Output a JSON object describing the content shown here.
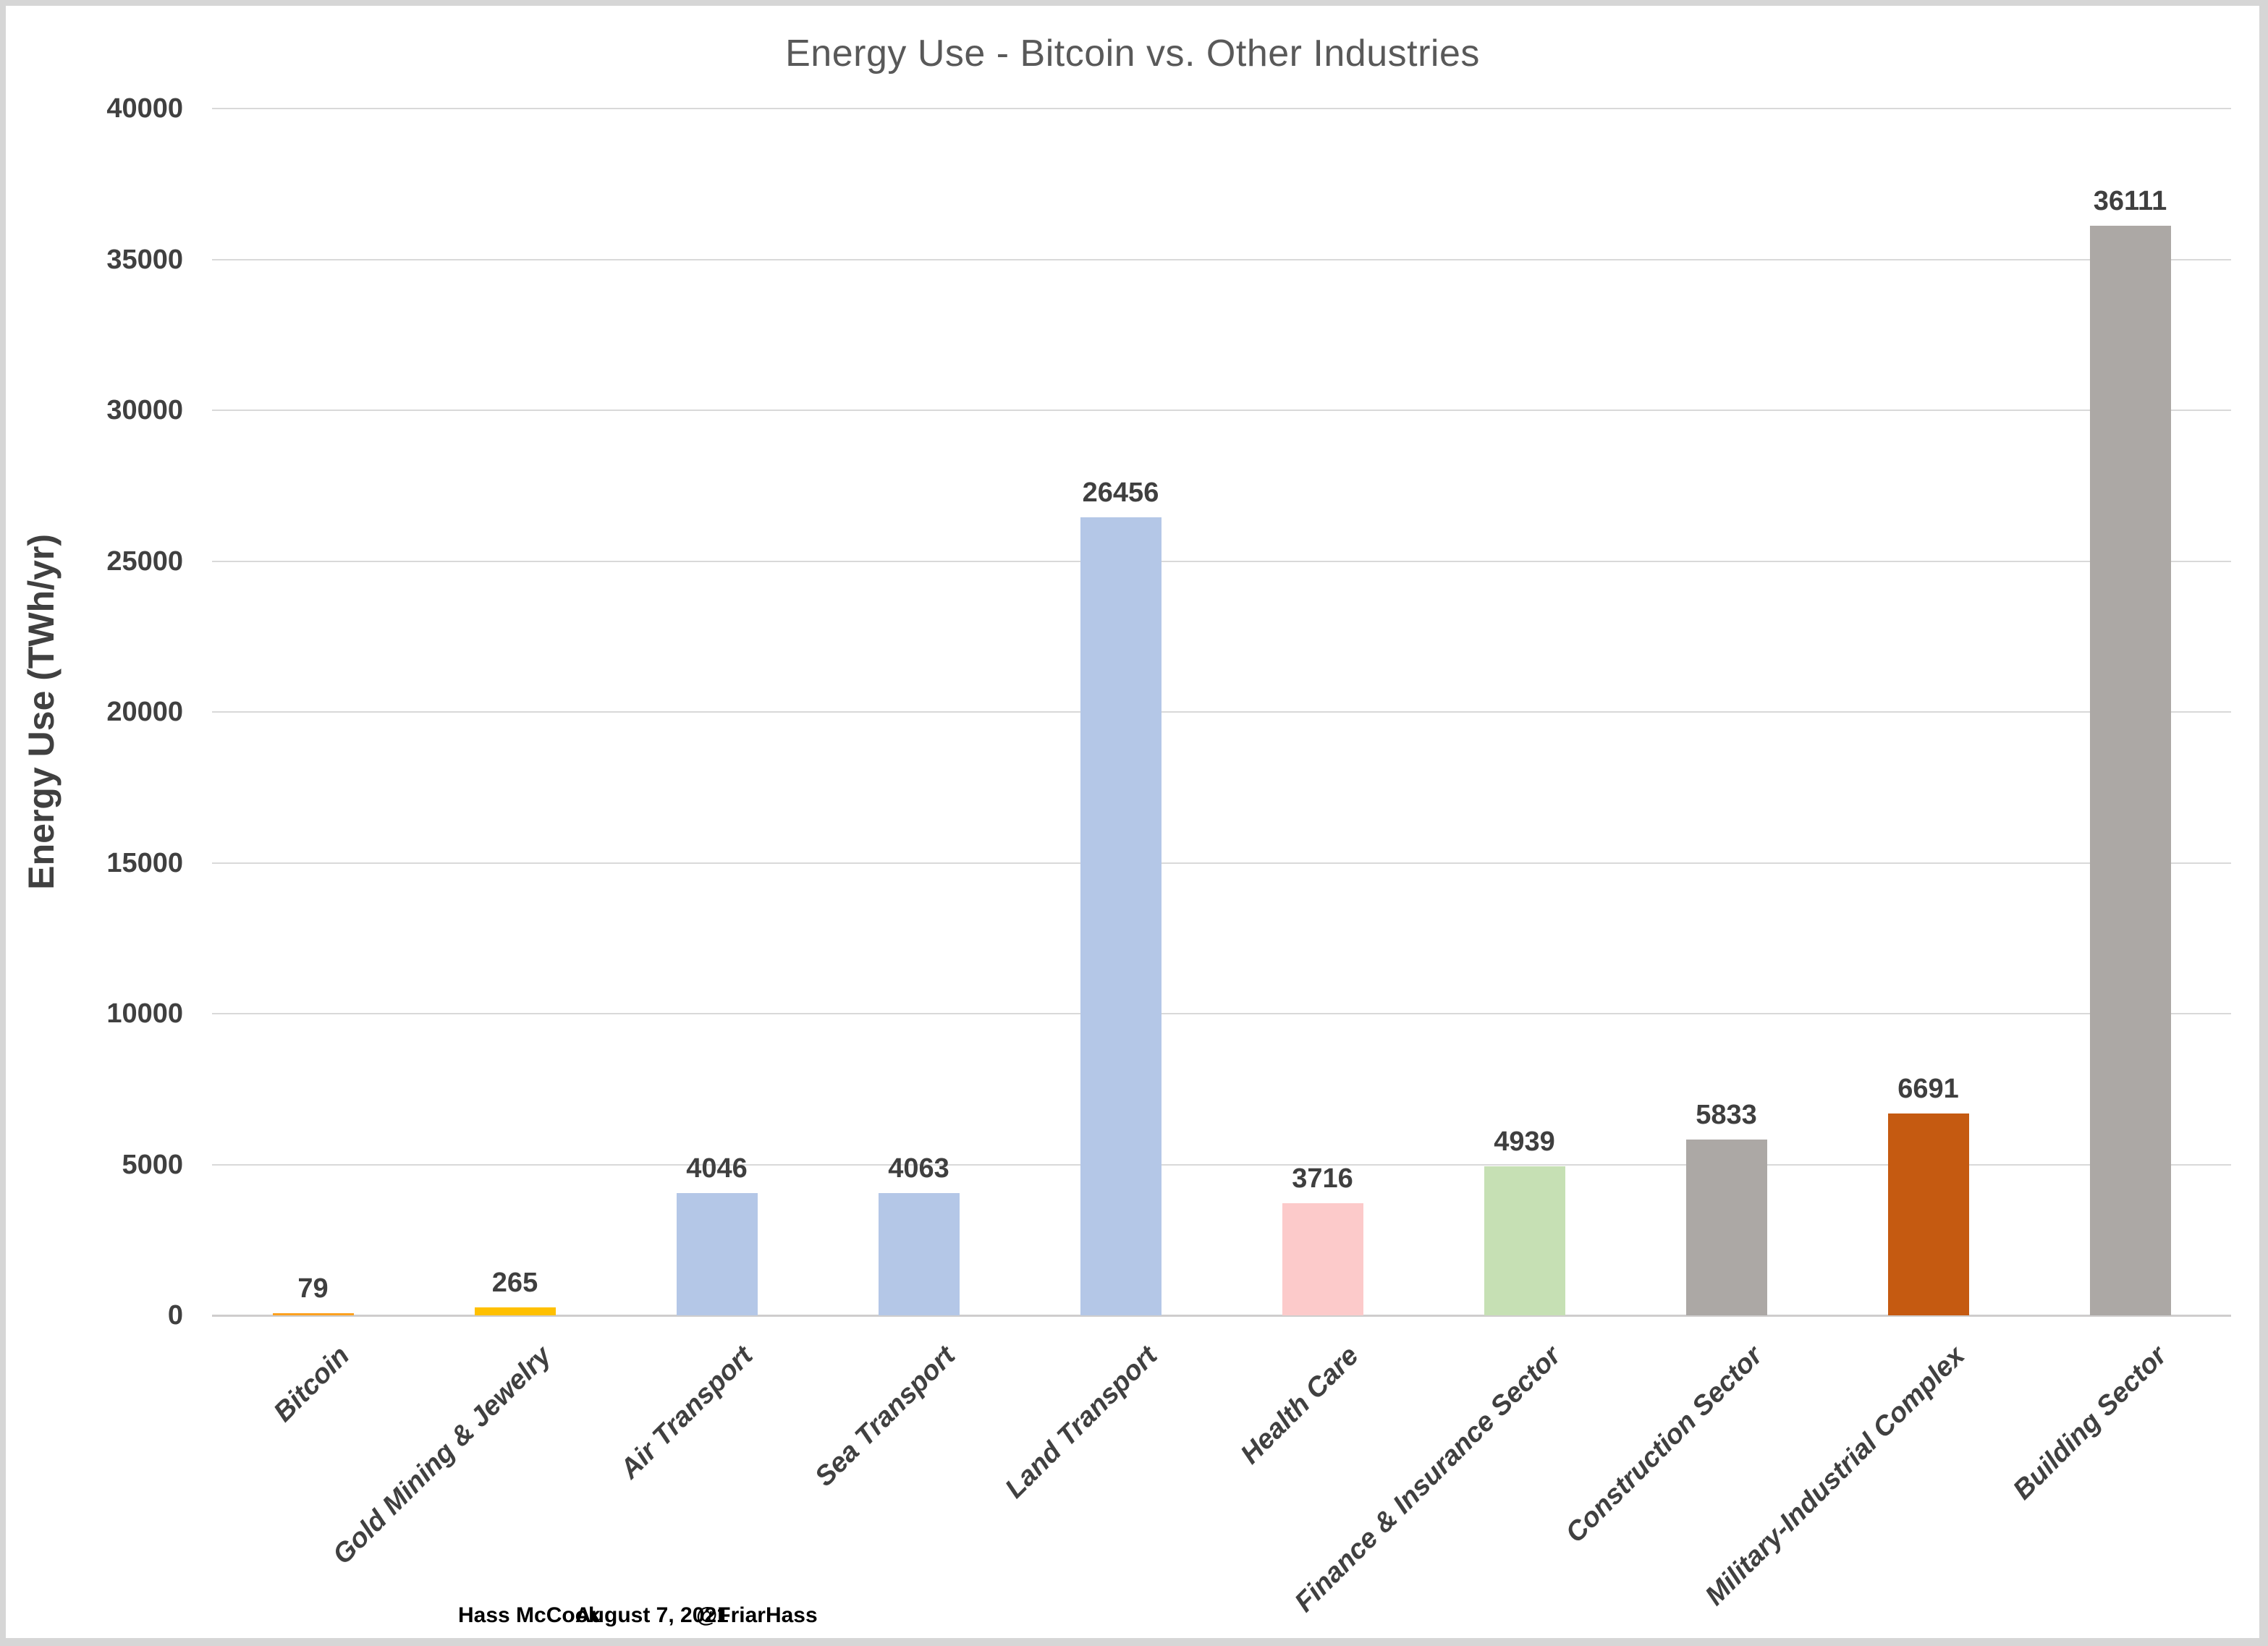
{
  "chart_data": {
    "type": "bar",
    "title": "Energy Use - Bitcoin vs. Other Industries",
    "xlabel": "",
    "ylabel": "Energy Use (TWh/yr)",
    "categories": [
      "Bitcoin",
      "Gold Mining & Jewelry",
      "Air Transport",
      "Sea Transport",
      "Land Transport",
      "Health Care",
      "Finance & Insurance Sector",
      "Construction Sector",
      "Military-Industrial Complex",
      "Building Sector"
    ],
    "values": [
      79,
      265,
      4046,
      4063,
      26456,
      3716,
      4939,
      5833,
      6691,
      36111
    ],
    "bar_colors": [
      "#FCA120",
      "#FFC000",
      "#B4C7E7",
      "#B4C7E7",
      "#B4C7E7",
      "#FCCACA",
      "#C6E0B4",
      "#ACA8A5",
      "#C55A11",
      "#ACA8A5"
    ],
    "ylim": [
      0,
      40000
    ],
    "ytick_step": 5000,
    "ytick_labels": [
      "0",
      "5000",
      "10000",
      "15000",
      "20000",
      "25000",
      "30000",
      "35000",
      "40000"
    ],
    "grid": true,
    "legend": false,
    "value_labels_shown": true
  },
  "footer": {
    "author": "Hass McCook",
    "date": "August 7, 2021",
    "handle": "@FriarHass"
  },
  "colors": {
    "title_text": "#595959",
    "axis_text": "#404040",
    "value_label_text": "#3F3F3F",
    "gridline": "#D9D9D9",
    "axis_line": "#CFCDCD",
    "chart_background": "#FFFFFF",
    "frame": "#D6D6D6"
  }
}
